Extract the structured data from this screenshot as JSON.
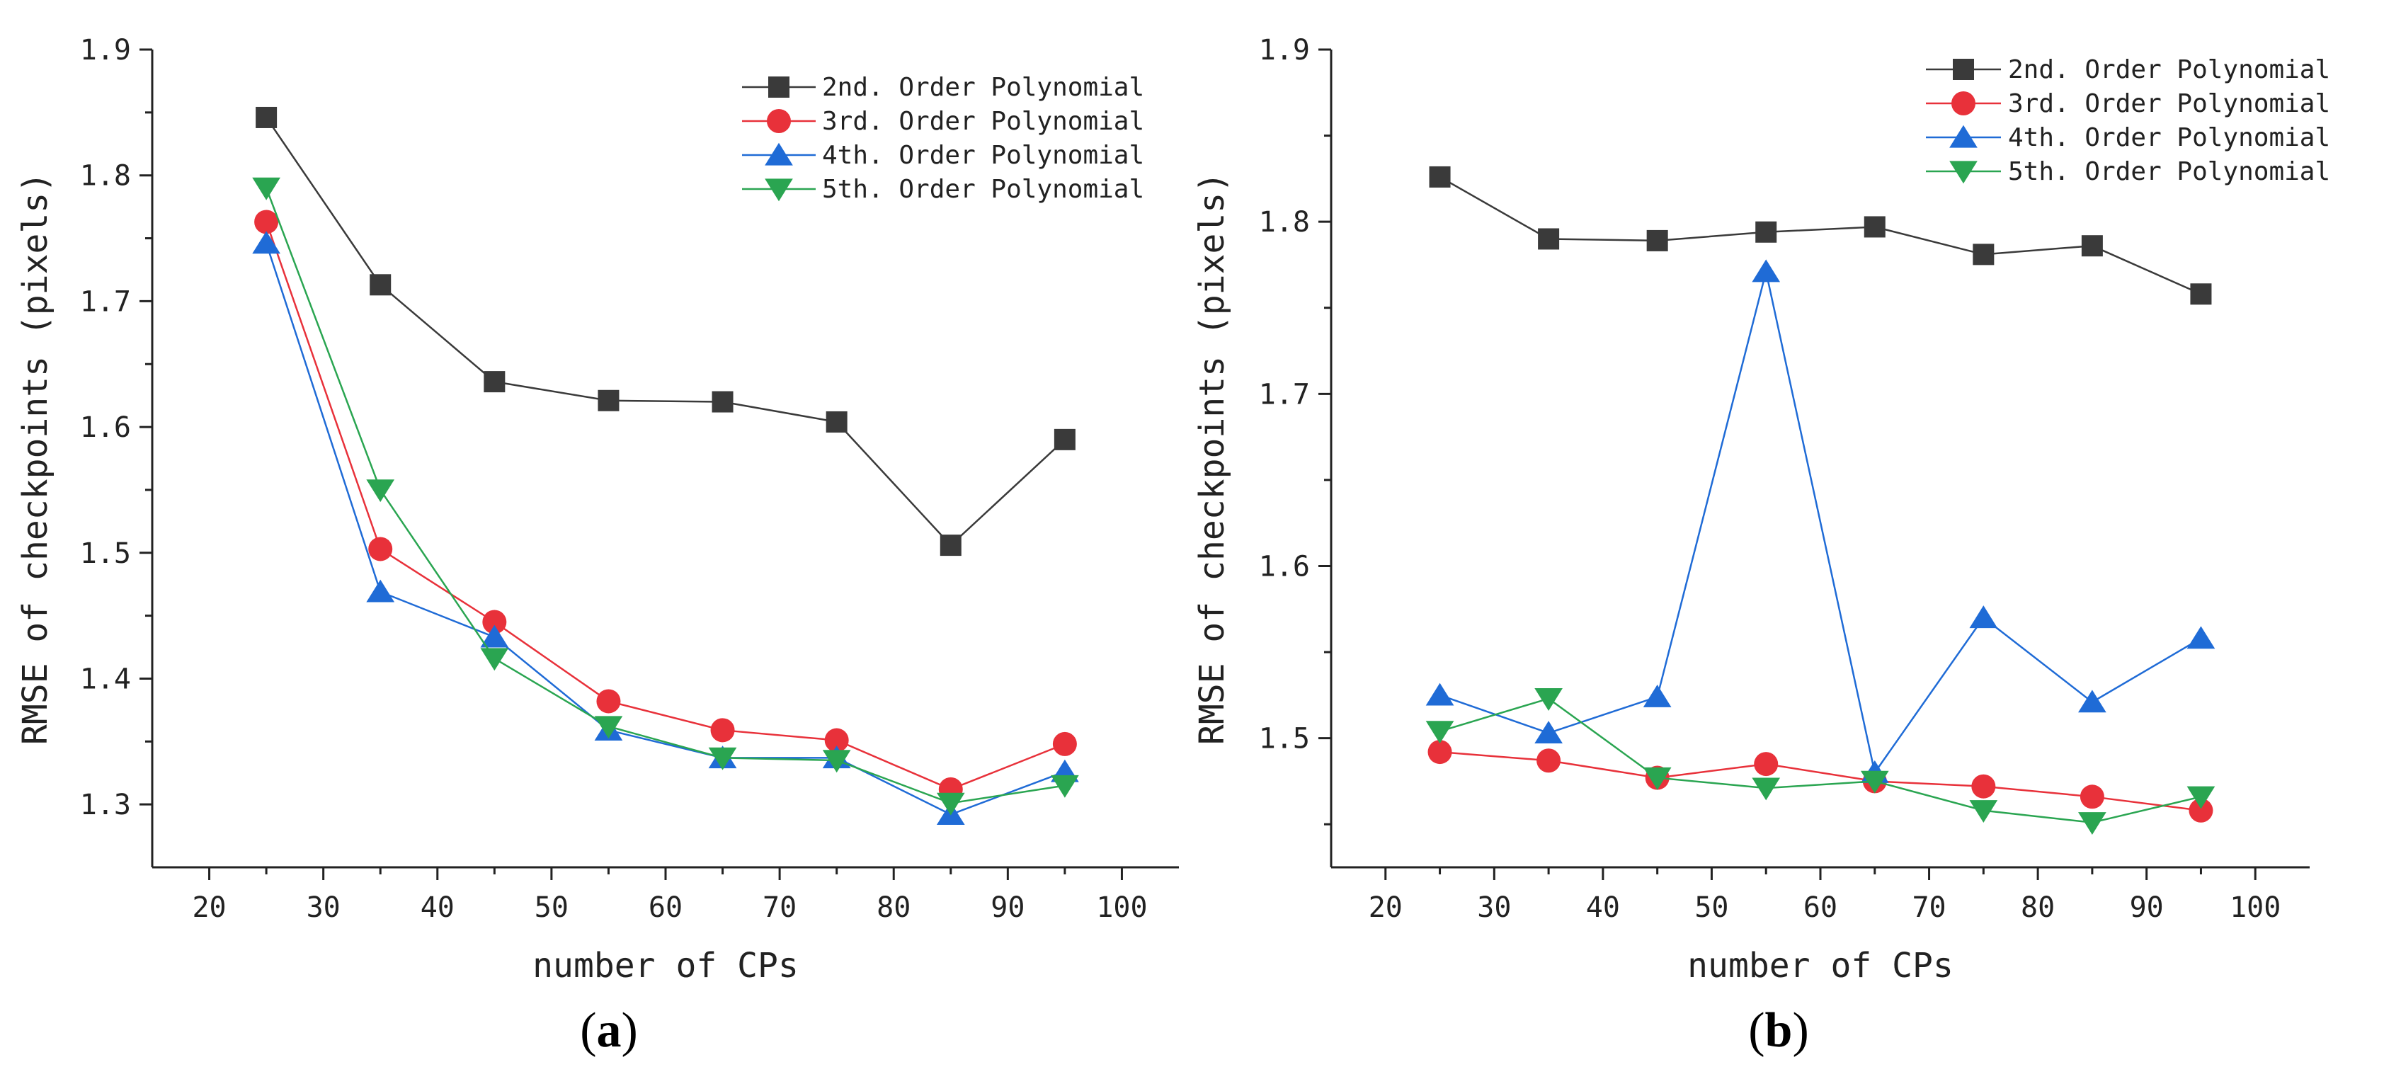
{
  "chart_data": [
    {
      "type": "line",
      "panel_label": "a",
      "xlabel": "number of CPs",
      "ylabel": "RMSE of checkpoints (pixels)",
      "xlim": [
        15,
        105
      ],
      "ylim": [
        1.25,
        1.9
      ],
      "xticks": [
        20,
        30,
        40,
        50,
        60,
        70,
        80,
        90,
        100
      ],
      "yticks": [
        1.3,
        1.4,
        1.5,
        1.6,
        1.7,
        1.8,
        1.9
      ],
      "ytick_labels": [
        "1.3",
        "1.4",
        "1.5",
        "1.6",
        "1.7",
        "1.8",
        "1.9"
      ],
      "legend_position": "top-right",
      "x": [
        25,
        35,
        45,
        55,
        65,
        75,
        85,
        95
      ],
      "series": [
        {
          "name": "2nd. Order Polynomial",
          "marker": "square",
          "color": "#3a3a3a",
          "values": [
            1.846,
            1.713,
            1.636,
            1.621,
            1.62,
            1.604,
            1.506,
            1.59
          ]
        },
        {
          "name": "3rd. Order Polynomial",
          "marker": "circle",
          "color": "#e8313a",
          "values": [
            1.763,
            1.503,
            1.445,
            1.382,
            1.359,
            1.351,
            1.312,
            1.348
          ]
        },
        {
          "name": "4th. Order Polynomial",
          "marker": "triangle-up",
          "color": "#1f6bd6",
          "values": [
            1.746,
            1.469,
            1.433,
            1.359,
            1.337,
            1.337,
            1.292,
            1.326
          ]
        },
        {
          "name": "5th. Order Polynomial",
          "marker": "triangle-down",
          "color": "#2aa551",
          "values": [
            1.79,
            1.55,
            1.416,
            1.362,
            1.337,
            1.335,
            1.301,
            1.315
          ]
        }
      ]
    },
    {
      "type": "line",
      "panel_label": "b",
      "xlabel": "number of CPs",
      "ylabel": "RMSE of checkpoints (pixels)",
      "xlim": [
        15,
        105
      ],
      "ylim": [
        1.425,
        1.9
      ],
      "xticks": [
        20,
        30,
        40,
        50,
        60,
        70,
        80,
        90,
        100
      ],
      "yticks": [
        1.5,
        1.6,
        1.7,
        1.8,
        1.9
      ],
      "ytick_labels": [
        "1.5",
        "1.6",
        "1.7",
        "1.8",
        "1.9"
      ],
      "legend_position": "top-right",
      "x": [
        25,
        35,
        45,
        55,
        65,
        75,
        85,
        95
      ],
      "series": [
        {
          "name": "2nd. Order Polynomial",
          "marker": "square",
          "color": "#3a3a3a",
          "values": [
            1.826,
            1.79,
            1.789,
            1.794,
            1.797,
            1.781,
            1.786,
            1.758
          ]
        },
        {
          "name": "3rd. Order Polynomial",
          "marker": "circle",
          "color": "#e8313a",
          "values": [
            1.492,
            1.487,
            1.477,
            1.485,
            1.475,
            1.472,
            1.466,
            1.458
          ]
        },
        {
          "name": "4th. Order Polynomial",
          "marker": "triangle-up",
          "color": "#1f6bd6",
          "values": [
            1.525,
            1.503,
            1.524,
            1.771,
            1.48,
            1.57,
            1.521,
            1.558
          ]
        },
        {
          "name": "5th. Order Polynomial",
          "marker": "triangle-down",
          "color": "#2aa551",
          "values": [
            1.504,
            1.523,
            1.477,
            1.471,
            1.475,
            1.458,
            1.451,
            1.466
          ]
        }
      ]
    }
  ]
}
